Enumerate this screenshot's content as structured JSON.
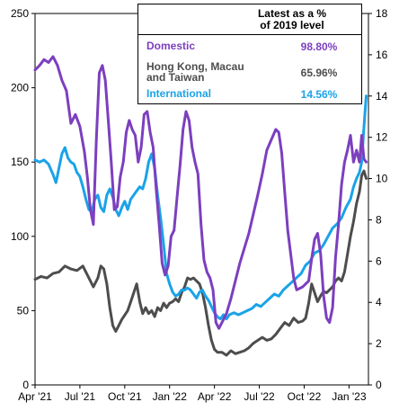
{
  "chart_data": {
    "type": "line",
    "x_ticks": [
      "Apr '21",
      "Jul '21",
      "Oct '21",
      "Jan '22",
      "Apr '22",
      "Jul '22",
      "Oct '22",
      "Jan '23"
    ],
    "y_left": {
      "range": [
        0,
        250
      ],
      "ticks": [
        "0",
        "50",
        "100",
        "150",
        "200",
        "250"
      ]
    },
    "y_right": {
      "range": [
        0,
        18
      ],
      "ticks": [
        "0",
        "2",
        "4",
        "6",
        "8",
        "10",
        "12",
        "14",
        "16",
        "18"
      ]
    },
    "legend": {
      "header": "Latest as a %\nof 2019 level",
      "placement": "top-right",
      "entries": [
        {
          "name": "Domestic",
          "value": "98.80%",
          "color": "#7c3fbf"
        },
        {
          "name": "Hong Kong, Macau\nand Taiwan",
          "value": "65.96%",
          "color": "#4d4d4d"
        },
        {
          "name": "International",
          "value": "14.56%",
          "color": "#1aa3e8"
        }
      ]
    },
    "series": [
      {
        "name": "Domestic",
        "axis": "left",
        "color": "#7c3fbf",
        "points": [
          [
            0,
            212
          ],
          [
            0.3,
            215
          ],
          [
            0.6,
            219
          ],
          [
            0.9,
            217
          ],
          [
            1.2,
            221
          ],
          [
            1.5,
            215
          ],
          [
            1.8,
            205
          ],
          [
            2.1,
            198
          ],
          [
            2.4,
            176
          ],
          [
            2.7,
            182
          ],
          [
            3.0,
            174
          ],
          [
            3.3,
            157
          ],
          [
            3.5,
            140
          ],
          [
            3.7,
            118
          ],
          [
            3.9,
            108
          ],
          [
            4.1,
            165
          ],
          [
            4.3,
            210
          ],
          [
            4.5,
            215
          ],
          [
            4.7,
            205
          ],
          [
            4.9,
            178
          ],
          [
            5.1,
            150
          ],
          [
            5.3,
            118
          ],
          [
            5.5,
            120
          ],
          [
            5.7,
            140
          ],
          [
            5.9,
            150
          ],
          [
            6.1,
            170
          ],
          [
            6.3,
            178
          ],
          [
            6.5,
            172
          ],
          [
            6.7,
            168
          ],
          [
            6.9,
            150
          ],
          [
            7.1,
            160
          ],
          [
            7.3,
            182
          ],
          [
            7.5,
            184
          ],
          [
            7.7,
            170
          ],
          [
            7.9,
            160
          ],
          [
            8.1,
            132
          ],
          [
            8.3,
            108
          ],
          [
            8.5,
            82
          ],
          [
            8.7,
            74
          ],
          [
            8.9,
            80
          ],
          [
            9.1,
            100
          ],
          [
            9.3,
            104
          ],
          [
            9.5,
            126
          ],
          [
            9.7,
            148
          ],
          [
            9.9,
            172
          ],
          [
            10.1,
            184
          ],
          [
            10.3,
            178
          ],
          [
            10.5,
            160
          ],
          [
            10.7,
            150
          ],
          [
            10.9,
            142
          ],
          [
            11.1,
            108
          ],
          [
            11.3,
            84
          ],
          [
            11.5,
            76
          ],
          [
            11.7,
            72
          ],
          [
            11.9,
            64
          ],
          [
            12.1,
            42
          ],
          [
            12.3,
            38
          ],
          [
            12.5,
            42
          ],
          [
            12.8,
            48
          ],
          [
            13.1,
            58
          ],
          [
            13.4,
            70
          ],
          [
            13.7,
            82
          ],
          [
            14.0,
            92
          ],
          [
            14.3,
            102
          ],
          [
            14.6,
            115
          ],
          [
            14.9,
            128
          ],
          [
            15.2,
            142
          ],
          [
            15.5,
            158
          ],
          [
            15.8,
            165
          ],
          [
            16.1,
            172
          ],
          [
            16.3,
            170
          ],
          [
            16.5,
            156
          ],
          [
            16.7,
            130
          ],
          [
            16.9,
            104
          ],
          [
            17.1,
            88
          ],
          [
            17.3,
            72
          ],
          [
            17.5,
            64
          ],
          [
            17.7,
            65
          ],
          [
            17.9,
            66
          ],
          [
            18.1,
            68
          ],
          [
            18.3,
            70
          ],
          [
            18.5,
            85
          ],
          [
            18.7,
            98
          ],
          [
            18.9,
            102
          ],
          [
            19.1,
            88
          ],
          [
            19.3,
            60
          ],
          [
            19.5,
            45
          ],
          [
            19.7,
            42
          ],
          [
            19.9,
            52
          ],
          [
            20.1,
            86
          ],
          [
            20.3,
            108
          ],
          [
            20.5,
            135
          ],
          [
            20.7,
            150
          ],
          [
            20.9,
            158
          ],
          [
            21.1,
            168
          ],
          [
            21.3,
            150
          ],
          [
            21.5,
            158
          ],
          [
            21.7,
            150
          ],
          [
            21.85,
            168
          ],
          [
            22.0,
            152
          ],
          [
            22.15,
            150
          ]
        ]
      },
      {
        "name": "Hong Kong, Macau\nand Taiwan",
        "axis": "left",
        "color": "#4d4d4d",
        "points": [
          [
            0,
            71
          ],
          [
            0.4,
            73
          ],
          [
            0.8,
            72
          ],
          [
            1.2,
            75
          ],
          [
            1.6,
            76
          ],
          [
            2.0,
            80
          ],
          [
            2.4,
            78
          ],
          [
            2.8,
            77
          ],
          [
            3.2,
            80
          ],
          [
            3.6,
            72
          ],
          [
            3.9,
            66
          ],
          [
            4.2,
            72
          ],
          [
            4.4,
            80
          ],
          [
            4.6,
            78
          ],
          [
            4.8,
            68
          ],
          [
            5.0,
            52
          ],
          [
            5.2,
            40
          ],
          [
            5.4,
            36
          ],
          [
            5.6,
            40
          ],
          [
            5.8,
            44
          ],
          [
            6.0,
            47
          ],
          [
            6.2,
            50
          ],
          [
            6.4,
            56
          ],
          [
            6.6,
            62
          ],
          [
            6.8,
            68
          ],
          [
            7.0,
            56
          ],
          [
            7.2,
            48
          ],
          [
            7.4,
            52
          ],
          [
            7.6,
            48
          ],
          [
            7.8,
            50
          ],
          [
            8.0,
            46
          ],
          [
            8.2,
            52
          ],
          [
            8.4,
            50
          ],
          [
            8.6,
            55
          ],
          [
            8.8,
            52
          ],
          [
            9.0,
            55
          ],
          [
            9.2,
            56
          ],
          [
            9.4,
            58
          ],
          [
            9.6,
            56
          ],
          [
            9.8,
            62
          ],
          [
            10.0,
            66
          ],
          [
            10.2,
            72
          ],
          [
            10.4,
            71
          ],
          [
            10.6,
            72
          ],
          [
            10.8,
            70
          ],
          [
            11.0,
            68
          ],
          [
            11.2,
            62
          ],
          [
            11.4,
            52
          ],
          [
            11.6,
            40
          ],
          [
            11.8,
            30
          ],
          [
            12.0,
            24
          ],
          [
            12.2,
            22
          ],
          [
            12.5,
            22
          ],
          [
            12.8,
            20
          ],
          [
            13.1,
            23
          ],
          [
            13.4,
            21
          ],
          [
            13.7,
            22
          ],
          [
            14.0,
            23
          ],
          [
            14.3,
            25
          ],
          [
            14.6,
            28
          ],
          [
            14.9,
            30
          ],
          [
            15.2,
            32
          ],
          [
            15.5,
            30
          ],
          [
            15.8,
            31
          ],
          [
            16.1,
            34
          ],
          [
            16.4,
            38
          ],
          [
            16.7,
            42
          ],
          [
            17.0,
            40
          ],
          [
            17.3,
            45
          ],
          [
            17.6,
            42
          ],
          [
            17.9,
            43
          ],
          [
            18.1,
            45
          ],
          [
            18.3,
            55
          ],
          [
            18.5,
            68
          ],
          [
            18.7,
            62
          ],
          [
            18.9,
            56
          ],
          [
            19.1,
            60
          ],
          [
            19.3,
            63
          ],
          [
            19.5,
            62
          ],
          [
            19.7,
            64
          ],
          [
            19.9,
            66
          ],
          [
            20.1,
            70
          ],
          [
            20.3,
            72
          ],
          [
            20.5,
            70
          ],
          [
            20.7,
            76
          ],
          [
            20.9,
            88
          ],
          [
            21.1,
            100
          ],
          [
            21.3,
            110
          ],
          [
            21.5,
            122
          ],
          [
            21.7,
            130
          ],
          [
            21.85,
            141
          ],
          [
            22.0,
            144
          ],
          [
            22.15,
            139
          ]
        ]
      },
      {
        "name": "International",
        "axis": "right",
        "color": "#1aa3e8",
        "points": [
          [
            0,
            10.9
          ],
          [
            0.3,
            10.8
          ],
          [
            0.6,
            10.9
          ],
          [
            0.9,
            10.7
          ],
          [
            1.2,
            10.2
          ],
          [
            1.4,
            9.8
          ],
          [
            1.6,
            10.5
          ],
          [
            1.8,
            11.2
          ],
          [
            2.0,
            11.5
          ],
          [
            2.2,
            11.0
          ],
          [
            2.4,
            10.8
          ],
          [
            2.6,
            10.7
          ],
          [
            2.8,
            10.3
          ],
          [
            3.0,
            10.1
          ],
          [
            3.2,
            9.6
          ],
          [
            3.4,
            9.0
          ],
          [
            3.6,
            8.5
          ],
          [
            3.8,
            8.4
          ],
          [
            4.0,
            9.0
          ],
          [
            4.2,
            9.2
          ],
          [
            4.4,
            8.6
          ],
          [
            4.6,
            8.4
          ],
          [
            4.8,
            9.2
          ],
          [
            5.0,
            9.5
          ],
          [
            5.2,
            9.1
          ],
          [
            5.4,
            8.5
          ],
          [
            5.6,
            8.2
          ],
          [
            5.8,
            8.6
          ],
          [
            6.0,
            8.9
          ],
          [
            6.2,
            8.5
          ],
          [
            6.4,
            9.0
          ],
          [
            6.6,
            9.2
          ],
          [
            6.8,
            9.4
          ],
          [
            7.0,
            9.6
          ],
          [
            7.2,
            9.5
          ],
          [
            7.4,
            10.0
          ],
          [
            7.6,
            10.8
          ],
          [
            7.8,
            11.2
          ],
          [
            8.0,
            10.5
          ],
          [
            8.2,
            9.2
          ],
          [
            8.4,
            8.1
          ],
          [
            8.6,
            6.8
          ],
          [
            8.8,
            5.4
          ],
          [
            9.0,
            4.9
          ],
          [
            9.2,
            4.5
          ],
          [
            9.4,
            4.3
          ],
          [
            9.6,
            4.4
          ],
          [
            9.8,
            4.6
          ],
          [
            10.0,
            4.6
          ],
          [
            10.2,
            4.7
          ],
          [
            10.4,
            4.6
          ],
          [
            10.6,
            4.4
          ],
          [
            10.8,
            4.2
          ],
          [
            11.0,
            4.5
          ],
          [
            11.2,
            4.6
          ],
          [
            11.4,
            4.3
          ],
          [
            11.6,
            4.1
          ],
          [
            11.8,
            3.8
          ],
          [
            12.0,
            3.5
          ],
          [
            12.2,
            3.3
          ],
          [
            12.4,
            3.2
          ],
          [
            12.6,
            3.4
          ],
          [
            12.8,
            3.2
          ],
          [
            13.0,
            3.4
          ],
          [
            13.3,
            3.5
          ],
          [
            13.6,
            3.4
          ],
          [
            13.9,
            3.5
          ],
          [
            14.2,
            3.6
          ],
          [
            14.5,
            3.7
          ],
          [
            14.8,
            3.9
          ],
          [
            15.1,
            3.8
          ],
          [
            15.4,
            4.0
          ],
          [
            15.7,
            4.2
          ],
          [
            16.0,
            4.4
          ],
          [
            16.3,
            4.3
          ],
          [
            16.6,
            4.6
          ],
          [
            16.9,
            4.8
          ],
          [
            17.2,
            5.0
          ],
          [
            17.5,
            5.2
          ],
          [
            17.8,
            5.4
          ],
          [
            18.1,
            5.8
          ],
          [
            18.4,
            6.0
          ],
          [
            18.7,
            6.4
          ],
          [
            19.0,
            6.5
          ],
          [
            19.3,
            6.8
          ],
          [
            19.6,
            7.2
          ],
          [
            19.9,
            7.6
          ],
          [
            20.2,
            7.8
          ],
          [
            20.5,
            8.1
          ],
          [
            20.8,
            8.6
          ],
          [
            21.1,
            9.0
          ],
          [
            21.3,
            9.6
          ],
          [
            21.5,
            10.0
          ],
          [
            21.7,
            10.3
          ],
          [
            21.85,
            10.8
          ],
          [
            22.0,
            12.5
          ],
          [
            22.15,
            14.0
          ]
        ]
      }
    ]
  }
}
